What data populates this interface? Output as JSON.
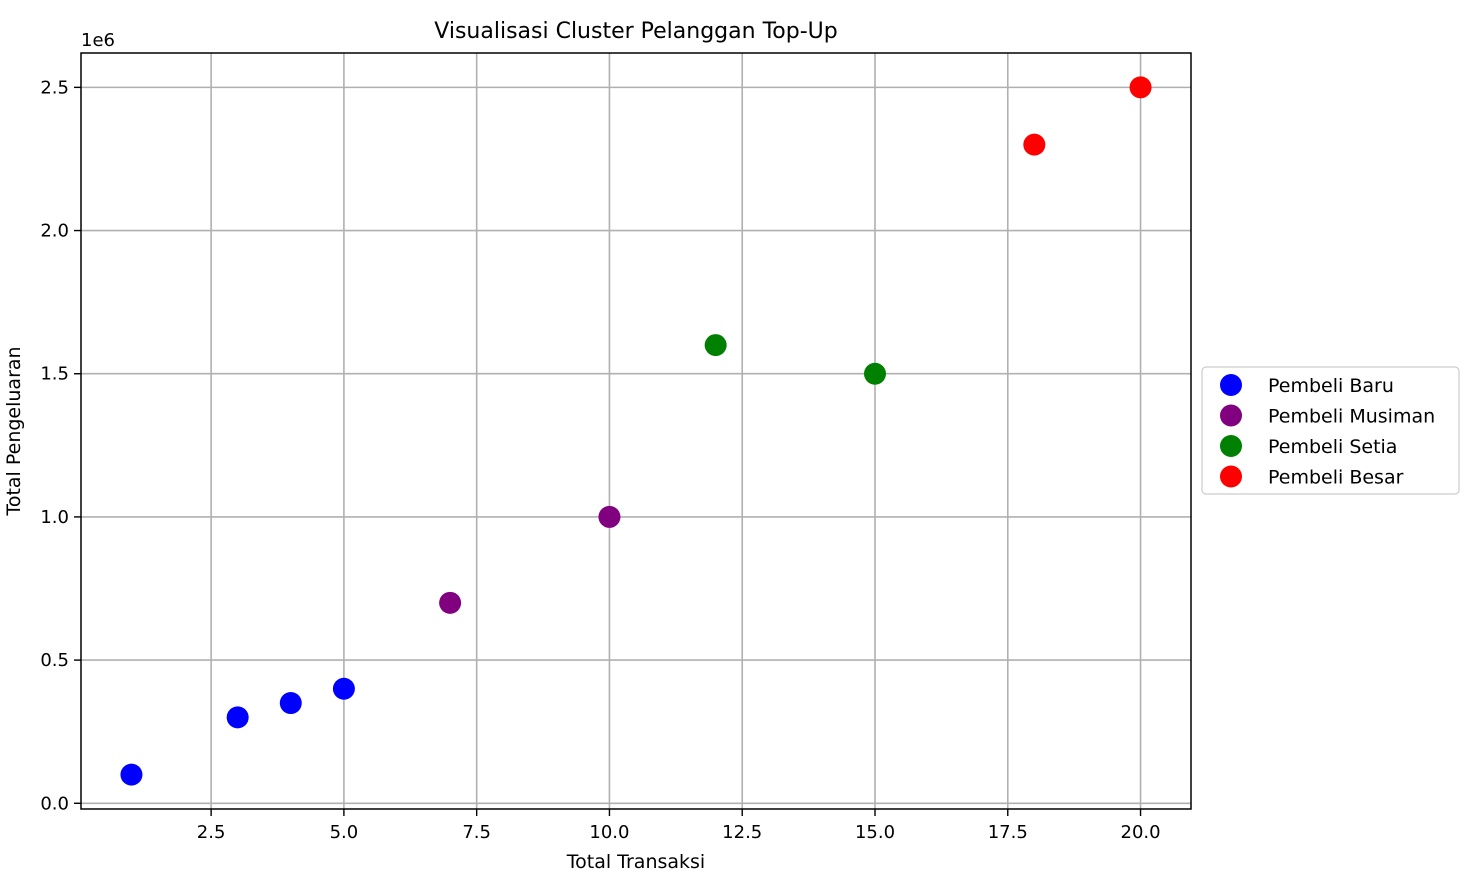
{
  "chart_data": {
    "type": "scatter",
    "title": "Visualisasi Cluster Pelanggan Top-Up",
    "xlabel": "Total Transaksi",
    "ylabel": "Total Pengeluaran",
    "y_offset_label": "1e6",
    "xlim": [
      0.05,
      20.95
    ],
    "ylim": [
      -0.02,
      2.62
    ],
    "x_ticks": [
      2.5,
      5.0,
      7.5,
      10.0,
      12.5,
      15.0,
      17.5,
      20.0
    ],
    "x_tick_labels": [
      "2.5",
      "5.0",
      "7.5",
      "10.0",
      "12.5",
      "15.0",
      "17.5",
      "20.0"
    ],
    "y_ticks": [
      0.0,
      0.5,
      1.0,
      1.5,
      2.0,
      2.5
    ],
    "y_tick_labels": [
      "0.0",
      "0.5",
      "1.0",
      "1.5",
      "2.0",
      "2.5"
    ],
    "grid": true,
    "legend_position": "center-right-outside",
    "series": [
      {
        "name": "Pembeli Baru",
        "color": "#0000ff",
        "x": [
          1,
          3,
          4,
          5
        ],
        "y": [
          0.1,
          0.3,
          0.35,
          0.4
        ]
      },
      {
        "name": "Pembeli Musiman",
        "color": "#800080",
        "x": [
          7,
          10
        ],
        "y": [
          0.7,
          1.0
        ]
      },
      {
        "name": "Pembeli Setia",
        "color": "#008000",
        "x": [
          12,
          15
        ],
        "y": [
          1.6,
          1.5
        ]
      },
      {
        "name": "Pembeli Besar",
        "color": "#ff0000",
        "x": [
          18,
          20
        ],
        "y": [
          2.3,
          2.5
        ]
      }
    ]
  }
}
